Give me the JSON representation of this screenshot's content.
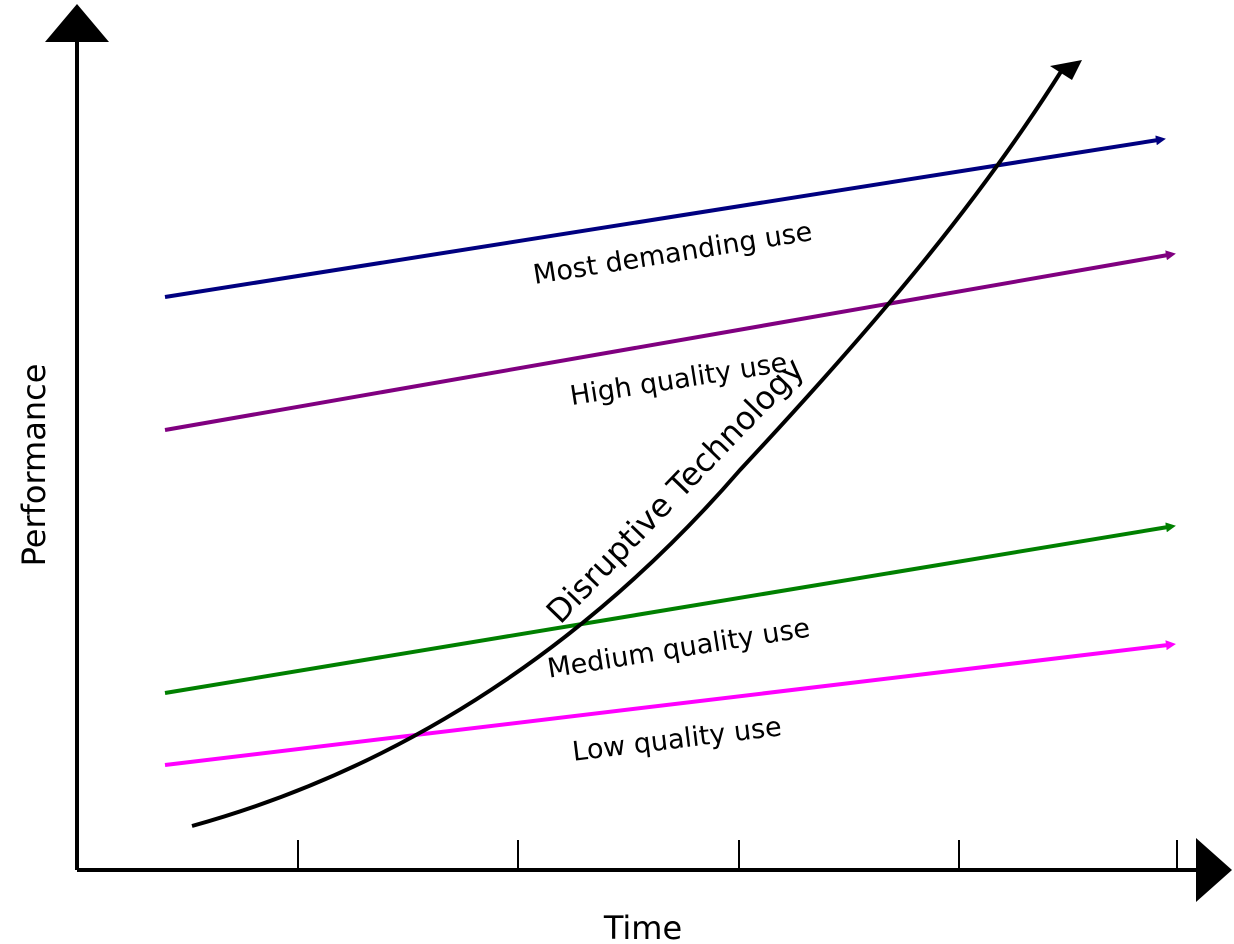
{
  "axes": {
    "y_label": "Performance",
    "x_label": "Time"
  },
  "lines": [
    {
      "key": "most",
      "label": "Most demanding use",
      "color": "#000080"
    },
    {
      "key": "high",
      "label": "High quality use",
      "color": "#800080"
    },
    {
      "key": "medium",
      "label": "Medium quality use",
      "color": "#008000"
    },
    {
      "key": "low",
      "label": "Low quality use",
      "color": "#ff00ff"
    }
  ],
  "disruptive": {
    "label": "Disruptive Technology",
    "color": "#000000"
  }
}
